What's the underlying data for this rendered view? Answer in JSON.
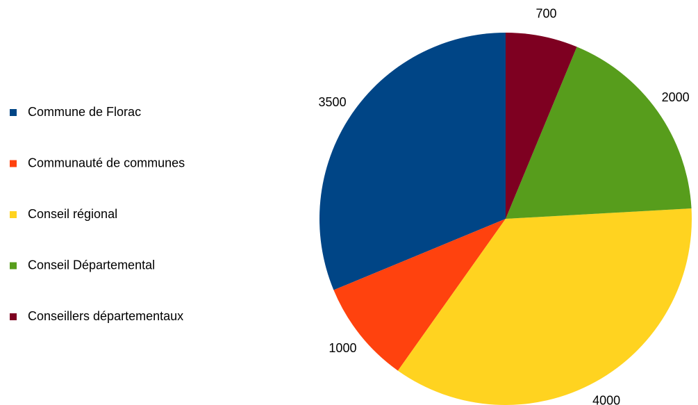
{
  "chart_data": {
    "type": "pie",
    "categories": [
      "Commune de Florac",
      "Communauté de communes",
      "Conseil régional",
      "Conseil Départemental",
      "Conseillers départementaux"
    ],
    "values": [
      3500,
      1000,
      4000,
      2000,
      700
    ],
    "colors": [
      "#004586",
      "#ff420e",
      "#ffd320",
      "#579d1c",
      "#7e0021"
    ],
    "legend": "left"
  }
}
